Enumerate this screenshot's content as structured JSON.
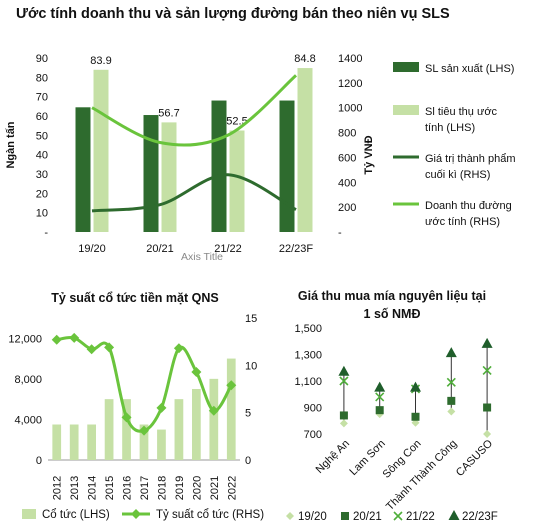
{
  "page_title": "Ước tính doanh thu và sản lượng đường bán theo niên vụ SLS",
  "chart_data": [
    {
      "type": "bar",
      "title": "",
      "categories": [
        "19/20",
        "20/21",
        "21/22",
        "22/23F"
      ],
      "xlabel": "Axis Title",
      "ylabel": "Ngàn tấn",
      "y2label": "Tỷ VNĐ",
      "ylim": [
        0,
        90
      ],
      "y2lim": [
        0,
        1400
      ],
      "yticks": [
        "-",
        "10",
        "20",
        "30",
        "40",
        "50",
        "60",
        "70",
        "80",
        "90"
      ],
      "y2ticks": [
        "-",
        "200",
        "400",
        "600",
        "800",
        "1000",
        "1200",
        "1400"
      ],
      "series": [
        {
          "name": "SL sản xuất (LHS)",
          "type": "bar",
          "axis": "left",
          "color": "#2e6b2e",
          "values": [
            64.5,
            60.5,
            68,
            68
          ]
        },
        {
          "name": "Sl tiêu thụ ước tính (LHS)",
          "type": "bar",
          "axis": "left",
          "color": "#c5e0a5",
          "values": [
            83.9,
            56.7,
            52.5,
            84.8
          ],
          "data_labels": [
            "83.9",
            "56.7",
            "52.5",
            "84.8"
          ]
        },
        {
          "name": "Giá trị thành phẩm cuối kì (RHS)",
          "type": "line",
          "axis": "right",
          "color": "#2e6b2e",
          "values": [
            170,
            220,
            460,
            180
          ]
        },
        {
          "name": "Doanh thu đường ước tính (RHS)",
          "type": "line",
          "axis": "right",
          "color": "#6ac43c",
          "values": [
            1000,
            720,
            780,
            1260
          ]
        }
      ],
      "legend": "right"
    },
    {
      "type": "bar",
      "title": "Tỷ suất cổ tức tiền mặt QNS",
      "categories": [
        "2012",
        "2013",
        "2014",
        "2015",
        "2016",
        "2017",
        "2018",
        "2019",
        "2020",
        "2021",
        "2022"
      ],
      "ylim": [
        0,
        14000
      ],
      "y2lim": [
        0,
        15
      ],
      "yticks": [
        "0",
        "4,000",
        "8,000",
        "12,000"
      ],
      "y2ticks": [
        "0",
        "5",
        "10",
        "15"
      ],
      "series": [
        {
          "name": "Cổ tức (LHS)",
          "type": "bar",
          "axis": "left",
          "color": "#c5e0a5",
          "values": [
            3500,
            3500,
            3500,
            6000,
            6000,
            3500,
            3000,
            6000,
            7000,
            8000,
            10000
          ]
        },
        {
          "name": "Tỷ suất cổ tức (RHS)",
          "type": "line",
          "axis": "right",
          "color": "#6ac43c",
          "values": [
            12.7,
            12.9,
            11.7,
            11.9,
            4.5,
            3.1,
            5.5,
            11.8,
            9.3,
            5.2,
            7.9
          ]
        }
      ],
      "legend": "bottom"
    },
    {
      "type": "scatter",
      "title": "Giá thu mua mía nguyên liệu tại 1 số NMĐ",
      "categories": [
        "Nghệ An",
        "Lam Sơn",
        "Sông Con",
        "Thành Thành Công",
        "CASUSO"
      ],
      "ylim": [
        700,
        1500
      ],
      "yticks": [
        "700",
        "900",
        "1,100",
        "1,300",
        "1,500"
      ],
      "series": [
        {
          "name": "19/20",
          "marker": "diamond",
          "color": "#c5e0a5",
          "values": [
            780,
            850,
            785,
            870,
            700
          ]
        },
        {
          "name": "20/21",
          "marker": "square",
          "color": "#2e6b2e",
          "values": [
            840,
            880,
            830,
            950,
            900
          ]
        },
        {
          "name": "21/22",
          "marker": "x",
          "color": "#4fae3a",
          "values": [
            1100,
            980,
            1040,
            1090,
            1180
          ]
        },
        {
          "name": "22/23F",
          "marker": "triangle",
          "color": "#1f5e2b",
          "values": [
            1170,
            1050,
            1050,
            1310,
            1380
          ]
        }
      ],
      "legend": "bottom"
    }
  ]
}
